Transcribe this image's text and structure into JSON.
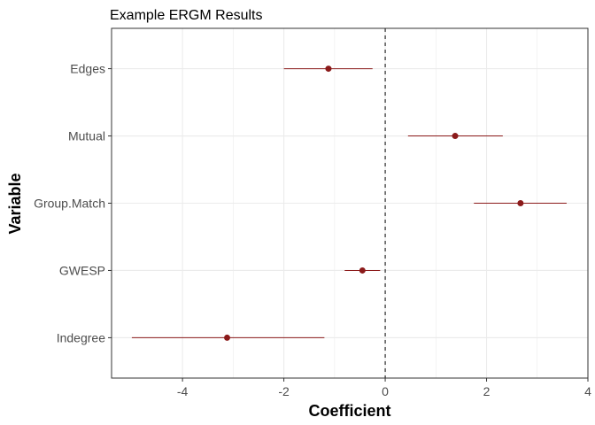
{
  "chart_data": {
    "type": "forest",
    "title": "Example ERGM Results",
    "xlabel": "Coefficient",
    "ylabel": "Variable",
    "xlim": [
      -5.4,
      4.0
    ],
    "x_ticks": [
      -4,
      -2,
      0,
      2,
      4
    ],
    "x_tick_labels": [
      "-4",
      "-2",
      "0",
      "2",
      "4"
    ],
    "reference_line": 0,
    "grid": true,
    "color": "#8b1a1a",
    "categories": [
      "Edges",
      "Mutual",
      "Group.Match",
      "GWESP",
      "Indegree"
    ],
    "estimates": [
      -1.12,
      1.38,
      2.67,
      -0.45,
      -3.12
    ],
    "ci_low": [
      -2.0,
      0.45,
      1.75,
      -0.8,
      -5.0
    ],
    "ci_high": [
      -0.25,
      2.32,
      3.58,
      -0.1,
      -1.2
    ]
  }
}
